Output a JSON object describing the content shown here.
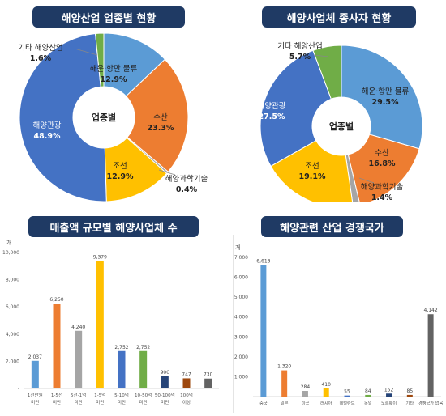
{
  "chart_data": [
    {
      "type": "pie",
      "title": "해양산업 업종별 현황",
      "center_label": "업종별",
      "slices": [
        {
          "label": "해운·항만 물류",
          "value": 12.9,
          "display": "12.9%",
          "color": "#5b9bd5"
        },
        {
          "label": "수산",
          "value": 23.3,
          "display": "23.3%",
          "color": "#ed7d31"
        },
        {
          "label": "해양과학기술",
          "value": 0.4,
          "display": "0.4%",
          "color": "#a5a5a5"
        },
        {
          "label": "조선",
          "value": 12.9,
          "display": "12.9%",
          "color": "#ffc000"
        },
        {
          "label": "해양관광",
          "value": 48.9,
          "display": "48.9%",
          "color": "#4472c4"
        },
        {
          "label": "기타 해양산업",
          "value": 1.6,
          "display": "1.6%",
          "color": "#70ad47"
        }
      ]
    },
    {
      "type": "pie",
      "title": "해양사업체 종사자 현황",
      "center_label": "업종별",
      "slices": [
        {
          "label": "해운·항만 물류",
          "value": 29.5,
          "display": "29.5%",
          "color": "#5b9bd5"
        },
        {
          "label": "수산",
          "value": 16.8,
          "display": "16.8%",
          "color": "#ed7d31"
        },
        {
          "label": "해양과학기술",
          "value": 1.4,
          "display": "1.4%",
          "color": "#a5a5a5"
        },
        {
          "label": "조선",
          "value": 19.1,
          "display": "19.1%",
          "color": "#ffc000"
        },
        {
          "label": "해양관광",
          "value": 27.5,
          "display": "27.5%",
          "color": "#4472c4"
        },
        {
          "label": "기타 해양산업",
          "value": 5.7,
          "display": "5.7%",
          "color": "#70ad47"
        }
      ]
    },
    {
      "type": "bar",
      "title": "매출액 규모별 해양사업체 수",
      "ylabel": "개",
      "ylim": [
        0,
        10000
      ],
      "yticks": [
        "-",
        "2,000",
        "4,000",
        "6,000",
        "8,000",
        "10,000"
      ],
      "categories": [
        [
          "1천만원",
          "미만"
        ],
        [
          "1-5천",
          "미만"
        ],
        [
          "5천-1억",
          "미만"
        ],
        [
          "1-5억",
          "미만"
        ],
        [
          "5-10억",
          "미만"
        ],
        [
          "10-50억",
          "미만"
        ],
        [
          "50-100억",
          "미만"
        ],
        [
          "100억",
          "이상"
        ]
      ],
      "values": [
        2037,
        6250,
        4240,
        9379,
        2752,
        2752,
        900,
        747
      ],
      "value_labels": [
        "2,037",
        "6,250",
        "4,240",
        "9,379",
        "2,752",
        "2,752",
        "900",
        "747"
      ],
      "extra_labels": [
        {
          "after_index": 7,
          "text": "730"
        }
      ],
      "colors": [
        "#5b9bd5",
        "#ed7d31",
        "#a5a5a5",
        "#ffc000",
        "#4472c4",
        "#70ad47",
        "#264478",
        "#9e480e"
      ],
      "last_bar": {
        "value": 730,
        "color": "#636363"
      }
    },
    {
      "type": "bar",
      "title": "해양관련 산업 경쟁국가",
      "ylabel": "개",
      "ylim": [
        0,
        7000
      ],
      "yticks": [
        "-",
        "1,000",
        "2,000",
        "3,000",
        "4,000",
        "5,000",
        "6,000",
        "7,000"
      ],
      "categories": [
        "중국",
        "일본",
        "미국",
        "러시아",
        "네덜란드",
        "독일",
        "노르웨이",
        "기타",
        "경쟁국가 없음"
      ],
      "values": [
        6613,
        1320,
        284,
        410,
        55,
        84,
        152,
        85,
        4142
      ],
      "value_labels": [
        "6,613",
        "1,320",
        "284",
        "410",
        "55",
        "84",
        "152",
        "85",
        "4,142"
      ],
      "colors": [
        "#5b9bd5",
        "#ed7d31",
        "#a5a5a5",
        "#ffc000",
        "#4472c4",
        "#70ad47",
        "#264478",
        "#9e480e",
        "#636363"
      ]
    }
  ]
}
